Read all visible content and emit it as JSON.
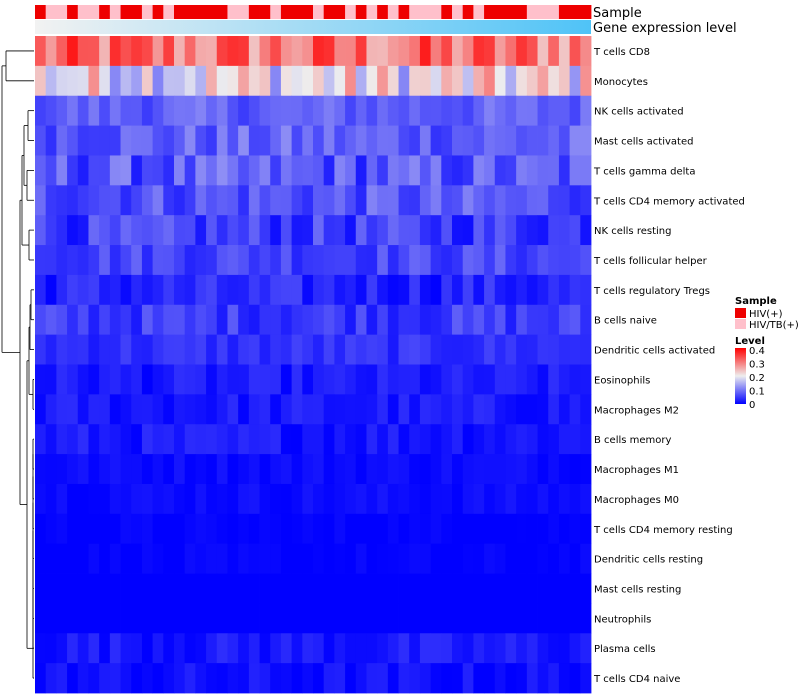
{
  "chart_data": {
    "type": "heatmap",
    "title": "",
    "top_annotations": [
      {
        "label": "Sample"
      },
      {
        "label": "Gene expression level"
      }
    ],
    "sample_groups": [
      "HIV(+)",
      "HIV/TB(+)",
      "HIV/TB(+)",
      "HIV(+)",
      "HIV/TB(+)",
      "HIV/TB(+)",
      "HIV(+)",
      "HIV/TB(+)",
      "HIV(+)",
      "HIV(+)",
      "HIV/TB(+)",
      "HIV(+)",
      "HIV/TB(+)",
      "HIV(+)",
      "HIV(+)",
      "HIV(+)",
      "HIV(+)",
      "HIV(+)",
      "HIV/TB(+)",
      "HIV/TB(+)",
      "HIV(+)",
      "HIV(+)",
      "HIV/TB(+)",
      "HIV(+)",
      "HIV(+)",
      "HIV(+)",
      "HIV/TB(+)",
      "HIV(+)",
      "HIV(+)",
      "HIV/TB(+)",
      "HIV(+)",
      "HIV/TB(+)",
      "HIV(+)",
      "HIV/TB(+)",
      "HIV(+)",
      "HIV/TB(+)",
      "HIV/TB(+)",
      "HIV/TB(+)",
      "HIV(+)",
      "HIV/TB(+)",
      "HIV(+)",
      "HIV/TB(+)",
      "HIV(+)",
      "HIV(+)",
      "HIV(+)",
      "HIV(+)",
      "HIV/TB(+)",
      "HIV/TB(+)",
      "HIV/TB(+)",
      "HIV(+)",
      "HIV(+)",
      "HIV(+)"
    ],
    "rows": [
      "T cells CD8",
      "Monocytes",
      "NK cells activated",
      "Mast cells activated",
      "T cells gamma delta",
      "T cells CD4 memory activated",
      "NK cells resting",
      "T cells follicular helper",
      "T cells regulatory  Tregs",
      "B cells naive",
      "Dendritic cells activated",
      "Eosinophils",
      "Macrophages M2",
      "B cells memory",
      "Macrophages M1",
      "Macrophages M0",
      "T cells CD4 memory resting",
      "Dendritic cells resting",
      "Mast cells resting",
      "Neutrophils",
      "Plasma cells",
      "T cells CD4 naive"
    ],
    "row_stats": [
      {
        "mean": 0.3,
        "spread": 0.08
      },
      {
        "mean": 0.2,
        "spread": 0.09
      },
      {
        "mean": 0.08,
        "spread": 0.03
      },
      {
        "mean": 0.08,
        "spread": 0.04
      },
      {
        "mean": 0.07,
        "spread": 0.05
      },
      {
        "mean": 0.07,
        "spread": 0.04
      },
      {
        "mean": 0.05,
        "spread": 0.04
      },
      {
        "mean": 0.06,
        "spread": 0.03
      },
      {
        "mean": 0.03,
        "spread": 0.03
      },
      {
        "mean": 0.05,
        "spread": 0.03
      },
      {
        "mean": 0.04,
        "spread": 0.02
      },
      {
        "mean": 0.02,
        "spread": 0.02
      },
      {
        "mean": 0.02,
        "spread": 0.02
      },
      {
        "mean": 0.02,
        "spread": 0.02
      },
      {
        "mean": 0.01,
        "spread": 0.01
      },
      {
        "mean": 0.01,
        "spread": 0.01
      },
      {
        "mean": 0.0,
        "spread": 0.01
      },
      {
        "mean": 0.0,
        "spread": 0.01
      },
      {
        "mean": 0.0,
        "spread": 0.0
      },
      {
        "mean": 0.0,
        "spread": 0.0
      },
      {
        "mean": 0.02,
        "spread": 0.02
      },
      {
        "mean": 0.01,
        "spread": 0.02
      }
    ],
    "legend": {
      "sample": {
        "title": "Sample",
        "items": [
          {
            "label": "HIV(+)",
            "color": "#EE0000"
          },
          {
            "label": "HIV/TB(+)",
            "color": "#FFC0CB"
          }
        ]
      },
      "level": {
        "title": "Level",
        "ticks": [
          "0.4",
          "0.3",
          "0.2",
          "0.1",
          "0"
        ],
        "range": [
          0,
          0.4
        ]
      }
    },
    "color_scale": {
      "low": "#0000FF",
      "mid": "#EEEEEE",
      "high": "#FF0000",
      "mid_value": 0.2,
      "domain": [
        0,
        0.4
      ]
    },
    "gradient_colors": {
      "start": "#F2F2F2",
      "end": "#4FC3F7"
    }
  }
}
